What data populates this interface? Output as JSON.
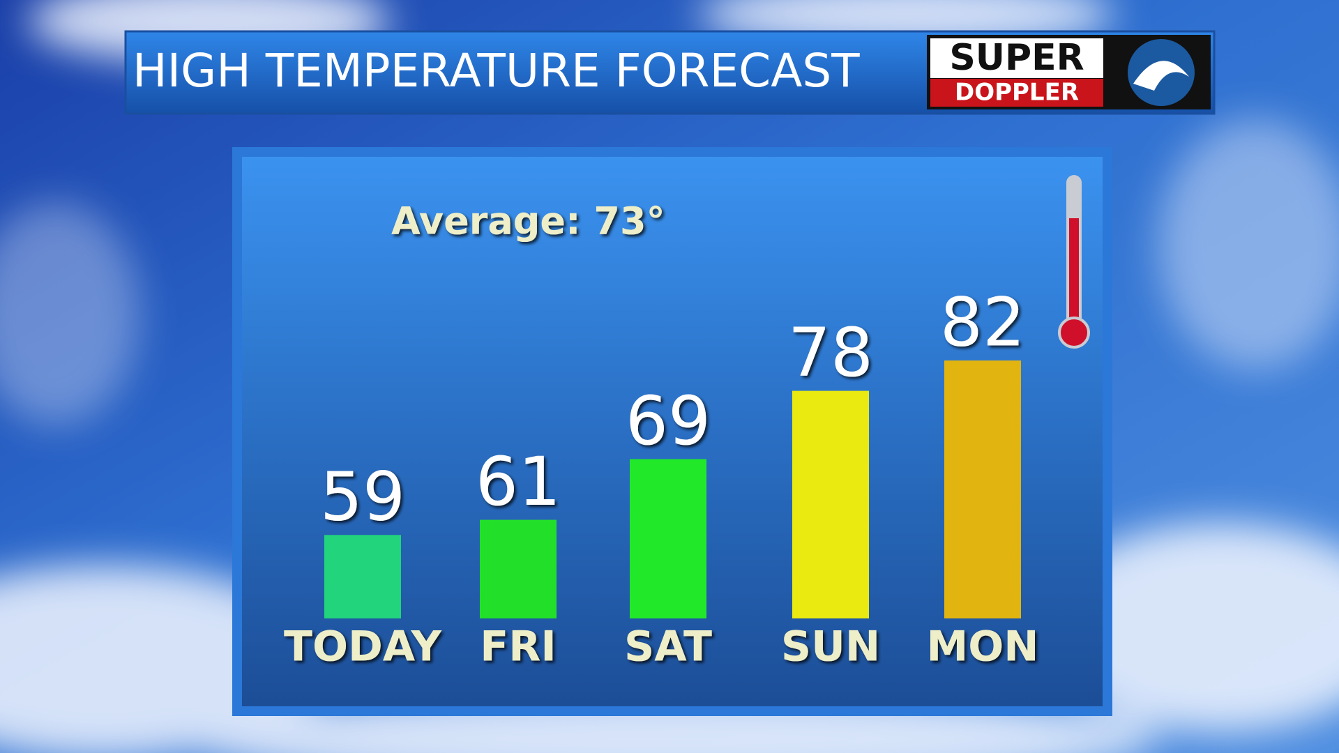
{
  "chart_data": {
    "type": "bar",
    "title": "HIGH TEMPERATURE FORECAST",
    "annotation": "Average: 73°",
    "categories": [
      "TODAY",
      "FRI",
      "SAT",
      "SUN",
      "MON"
    ],
    "values": [
      59,
      61,
      69,
      78,
      82
    ],
    "colors": [
      "#22d47c",
      "#22e02a",
      "#22e82a",
      "#eaea10",
      "#e2b410"
    ],
    "ylim": [
      48,
      90
    ]
  },
  "logo": {
    "top": "SUPER",
    "bottom": "DOPPLER"
  }
}
